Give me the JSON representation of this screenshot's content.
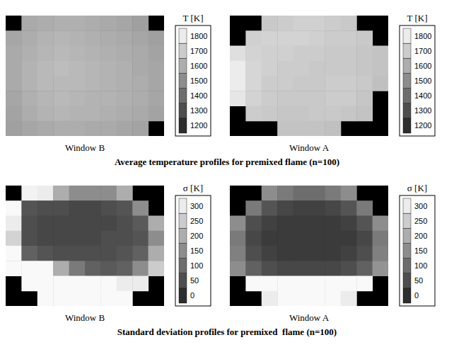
{
  "chart_data": [
    {
      "type": "heatmap",
      "title": "Window B",
      "colorbar_label": "T [K]",
      "colorbar_range": [
        1150,
        1850
      ],
      "colorbar_ticks": [
        1200,
        1300,
        1400,
        1500,
        1600,
        1700,
        1800
      ],
      "cells": [
        [
          null,
          1590,
          1600,
          1610,
          1610,
          1600,
          1590,
          1580,
          1560,
          null
        ],
        [
          1580,
          1600,
          1620,
          1630,
          1620,
          1610,
          1600,
          1590,
          1580,
          1560
        ],
        [
          1590,
          1610,
          1630,
          1640,
          1630,
          1620,
          1610,
          1600,
          1590,
          1570
        ],
        [
          1590,
          1620,
          1640,
          1650,
          1640,
          1630,
          1620,
          1610,
          1590,
          1580
        ],
        [
          1590,
          1620,
          1640,
          1640,
          1640,
          1630,
          1620,
          1610,
          1600,
          1580
        ],
        [
          1580,
          1610,
          1630,
          1640,
          1630,
          1620,
          1620,
          1610,
          1600,
          1580
        ],
        [
          1570,
          1600,
          1620,
          1630,
          1620,
          1620,
          1610,
          1600,
          1590,
          1570
        ],
        [
          1560,
          1580,
          1590,
          1600,
          1600,
          1590,
          1590,
          1580,
          1570,
          null
        ]
      ]
    },
    {
      "type": "heatmap",
      "title": "Window A",
      "colorbar_label": "T [K]",
      "colorbar_range": [
        1150,
        1850
      ],
      "colorbar_ticks": [
        1200,
        1300,
        1400,
        1500,
        1600,
        1700,
        1800
      ],
      "cells": [
        [
          null,
          null,
          1690,
          1700,
          1710,
          1710,
          1700,
          1690,
          null,
          null
        ],
        [
          null,
          1710,
          1720,
          1720,
          1720,
          1710,
          1700,
          1700,
          1690,
          null
        ],
        [
          1760,
          1720,
          1710,
          1710,
          1700,
          1700,
          1690,
          1690,
          1680,
          1670
        ],
        [
          1800,
          1730,
          1710,
          1700,
          1700,
          1690,
          1690,
          1690,
          1680,
          1670
        ],
        [
          1800,
          1730,
          1700,
          1700,
          1690,
          1690,
          1700,
          1700,
          1690,
          1660
        ],
        [
          1780,
          1720,
          1700,
          1690,
          1690,
          1690,
          1700,
          1700,
          1680,
          null
        ],
        [
          null,
          1700,
          1690,
          1680,
          1680,
          1690,
          1690,
          1680,
          1670,
          null
        ],
        [
          null,
          null,
          null,
          1670,
          1670,
          1670,
          1660,
          null,
          null,
          null
        ]
      ]
    },
    {
      "type": "heatmap",
      "title": "Window B",
      "colorbar_label": "σ [K]",
      "colorbar_range": [
        -25,
        325
      ],
      "colorbar_ticks": [
        0,
        50,
        100,
        150,
        200,
        250,
        300
      ],
      "cells": [
        [
          null,
          310,
          300,
          200,
          150,
          150,
          150,
          200,
          null,
          null
        ],
        [
          320,
          60,
          50,
          50,
          40,
          40,
          50,
          60,
          150,
          null
        ],
        [
          300,
          50,
          40,
          40,
          40,
          40,
          40,
          50,
          70,
          200
        ],
        [
          260,
          50,
          40,
          40,
          40,
          40,
          50,
          50,
          60,
          150
        ],
        [
          320,
          80,
          60,
          50,
          50,
          50,
          50,
          60,
          80,
          200
        ],
        [
          320,
          320,
          320,
          200,
          120,
          80,
          70,
          80,
          150,
          250
        ],
        [
          null,
          320,
          320,
          320,
          320,
          320,
          320,
          300,
          300,
          null
        ],
        [
          null,
          null,
          320,
          320,
          320,
          320,
          320,
          320,
          null,
          null
        ]
      ]
    },
    {
      "type": "heatmap",
      "title": "Window A",
      "colorbar_label": "σ [K]",
      "colorbar_range": [
        -25,
        325
      ],
      "colorbar_ticks": [
        0,
        50,
        100,
        150,
        200,
        250,
        300
      ],
      "cells": [
        [
          null,
          null,
          150,
          120,
          100,
          100,
          120,
          150,
          null,
          null
        ],
        [
          null,
          120,
          60,
          40,
          30,
          30,
          40,
          60,
          120,
          null
        ],
        [
          150,
          50,
          30,
          20,
          20,
          20,
          20,
          30,
          60,
          150
        ],
        [
          120,
          40,
          20,
          20,
          20,
          20,
          20,
          20,
          40,
          120
        ],
        [
          130,
          50,
          30,
          20,
          20,
          20,
          20,
          30,
          50,
          130
        ],
        [
          150,
          80,
          50,
          40,
          40,
          40,
          40,
          50,
          80,
          160
        ],
        [
          null,
          320,
          320,
          320,
          320,
          320,
          320,
          320,
          320,
          null
        ],
        [
          null,
          null,
          300,
          320,
          320,
          320,
          320,
          300,
          null,
          null
        ]
      ]
    }
  ],
  "captions": [
    "Average temperature profiles for premixed flame (n=100)",
    "Standard deviation profiles for premixed  flame (n=100)"
  ]
}
